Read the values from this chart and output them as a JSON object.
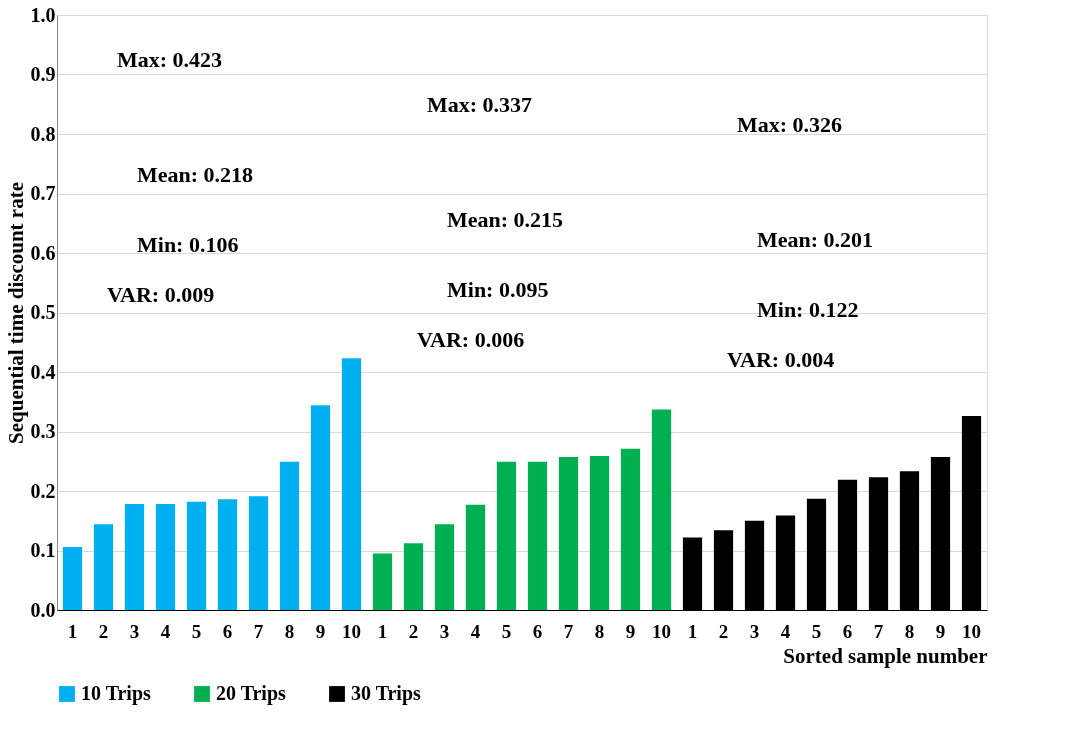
{
  "chart_data": {
    "type": "bar",
    "xlabel": "Sorted sample number",
    "ylabel": "Sequential time discount rate",
    "categories": [
      "1",
      "2",
      "3",
      "4",
      "5",
      "6",
      "7",
      "8",
      "9",
      "10",
      "1",
      "2",
      "3",
      "4",
      "5",
      "6",
      "7",
      "8",
      "9",
      "10",
      "1",
      "2",
      "3",
      "4",
      "5",
      "6",
      "7",
      "8",
      "9",
      "10"
    ],
    "series": [
      {
        "name": "10 Trips",
        "color": "#00b0f0",
        "values": [
          0.106,
          0.144,
          0.178,
          0.178,
          0.182,
          0.186,
          0.191,
          0.249,
          0.344,
          0.423,
          null,
          null,
          null,
          null,
          null,
          null,
          null,
          null,
          null,
          null,
          null,
          null,
          null,
          null,
          null,
          null,
          null,
          null,
          null,
          null
        ]
      },
      {
        "name": "20 Trips",
        "color": "#00b050",
        "values": [
          null,
          null,
          null,
          null,
          null,
          null,
          null,
          null,
          null,
          null,
          0.095,
          0.112,
          0.144,
          0.177,
          0.249,
          0.249,
          0.257,
          0.259,
          0.271,
          0.337,
          null,
          null,
          null,
          null,
          null,
          null,
          null,
          null,
          null,
          null
        ]
      },
      {
        "name": "30 Trips",
        "color": "#000000",
        "values": [
          null,
          null,
          null,
          null,
          null,
          null,
          null,
          null,
          null,
          null,
          null,
          null,
          null,
          null,
          null,
          null,
          null,
          null,
          null,
          null,
          0.122,
          0.134,
          0.15,
          0.159,
          0.187,
          0.219,
          0.223,
          0.233,
          0.257,
          0.326
        ]
      }
    ],
    "ylim": [
      0,
      1
    ],
    "yticks": [
      {
        "value": 0,
        "label": "0.0"
      },
      {
        "value": 0.1,
        "label": "0.1"
      },
      {
        "value": 0.2,
        "label": "0.2"
      },
      {
        "value": 0.3,
        "label": "0.3"
      },
      {
        "value": 0.4,
        "label": "0.4"
      },
      {
        "value": 0.5,
        "label": "0.5"
      },
      {
        "value": 0.6,
        "label": "0.6"
      },
      {
        "value": 0.7,
        "label": "0.7"
      },
      {
        "value": 0.8,
        "label": "0.8"
      },
      {
        "value": 0.9,
        "label": "0.9"
      },
      {
        "value": 1,
        "label": "1.0"
      }
    ],
    "grid": "y",
    "legend": "bottom",
    "annotations": [
      "Max: 0.423",
      "Mean: 0.218",
      "Min: 0.106",
      "VAR: 0.009",
      "Max: 0.337",
      "Mean: 0.215",
      "Min: 0.095",
      "VAR: 0.006",
      "Max: 0.326",
      "Mean: 0.201",
      "Min: 0.122",
      "VAR: 0.004"
    ]
  }
}
